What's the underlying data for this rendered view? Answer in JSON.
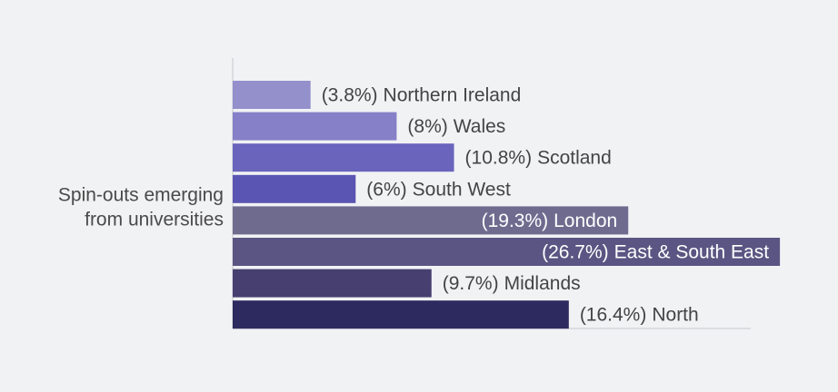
{
  "chart_data": {
    "type": "bar",
    "orientation": "horizontal",
    "ylabel": [
      "Spin-outs emerging",
      "from universities"
    ],
    "categories": [
      "Northern Ireland",
      "Wales",
      "Scotland",
      "South West",
      "London",
      "East & South East",
      "Midlands",
      "North"
    ],
    "values": [
      3.8,
      8,
      10.8,
      6,
      19.3,
      26.7,
      9.7,
      16.4
    ],
    "value_labels": [
      "(3.8%)",
      "(8%)",
      "(10.8%)",
      "(6%)",
      "(19.3%)",
      "(26.7%)",
      "(9.7%)",
      "(16.4%)"
    ],
    "colors": [
      "#9490cc",
      "#8580c8",
      "#6a64bd",
      "#5a54b2",
      "#6f6b8f",
      "#5a5582",
      "#463f70",
      "#2c2a5e"
    ],
    "label_position": [
      "outside",
      "outside",
      "outside",
      "outside",
      "inside",
      "inside",
      "outside",
      "outside"
    ],
    "xlim": [
      0,
      28
    ]
  }
}
